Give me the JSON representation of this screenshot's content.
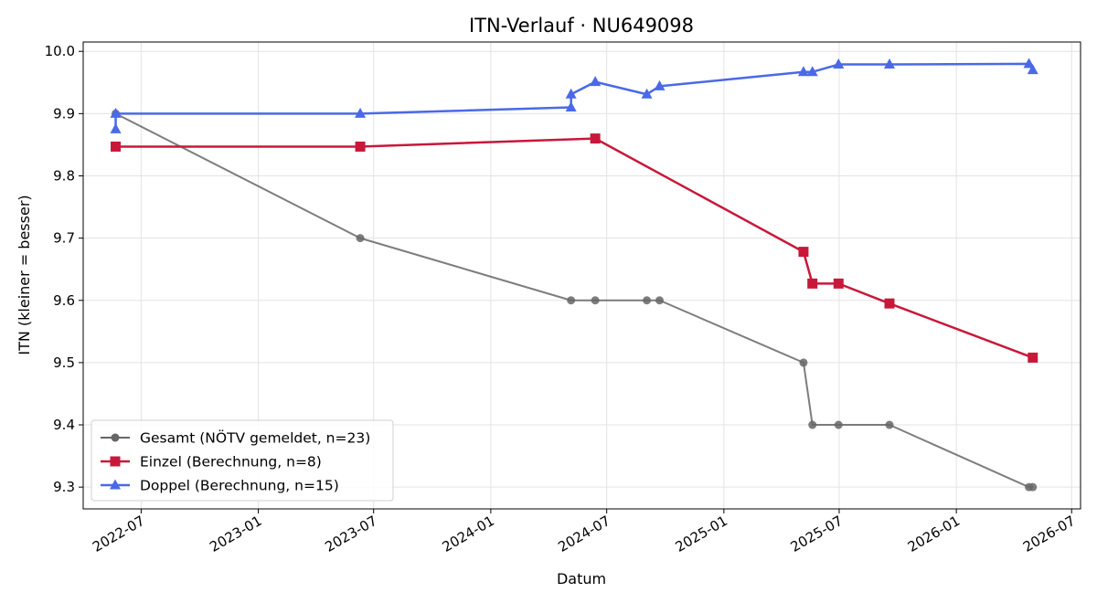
{
  "chart_data": {
    "type": "line",
    "title": "ITN-Verlauf · NU649098",
    "xlabel": "Datum",
    "ylabel": "ITN  (kleiner = besser)",
    "xlim": [
      "2022-04-01",
      "2026-07-15"
    ],
    "ylim": [
      9.265,
      10.015
    ],
    "x_ticks": [
      "2022-07",
      "2023-01",
      "2023-07",
      "2024-01",
      "2024-07",
      "2025-01",
      "2025-07",
      "2026-01",
      "2026-07"
    ],
    "y_ticks": [
      9.3,
      9.4,
      9.5,
      9.6,
      9.7,
      9.8,
      9.9,
      10.0
    ],
    "y_tick_labels": [
      "9.3",
      "9.4",
      "9.5",
      "9.6",
      "9.7",
      "9.8",
      "9.9",
      "10.0"
    ],
    "grid": true,
    "legend_position": "lower-left",
    "series": [
      {
        "name": "Gesamt (NÖTV gemeldet, n=23)",
        "color": "#666666",
        "marker": "circle",
        "points": [
          {
            "x": "2022-05-22",
            "y": 9.9
          },
          {
            "x": "2023-06-10",
            "y": 9.7
          },
          {
            "x": "2024-05-06",
            "y": 9.6
          },
          {
            "x": "2024-06-13",
            "y": 9.6
          },
          {
            "x": "2024-09-02",
            "y": 9.6
          },
          {
            "x": "2024-09-22",
            "y": 9.6
          },
          {
            "x": "2025-05-06",
            "y": 9.5
          },
          {
            "x": "2025-05-20",
            "y": 9.4
          },
          {
            "x": "2025-06-30",
            "y": 9.4
          },
          {
            "x": "2025-09-18",
            "y": 9.4
          },
          {
            "x": "2026-04-25",
            "y": 9.3
          },
          {
            "x": "2026-05-01",
            "y": 9.3
          }
        ]
      },
      {
        "name": "Einzel (Berechnung, n=8)",
        "color": "#c8183a",
        "marker": "square",
        "points": [
          {
            "x": "2022-05-22",
            "y": 9.847
          },
          {
            "x": "2023-06-10",
            "y": 9.847
          },
          {
            "x": "2024-06-13",
            "y": 9.86
          },
          {
            "x": "2025-05-06",
            "y": 9.678
          },
          {
            "x": "2025-05-20",
            "y": 9.627
          },
          {
            "x": "2025-06-30",
            "y": 9.627
          },
          {
            "x": "2025-09-18",
            "y": 9.595
          },
          {
            "x": "2026-05-01",
            "y": 9.508
          }
        ]
      },
      {
        "name": "Doppel (Berechnung, n=15)",
        "color": "#4a69e8",
        "marker": "triangle",
        "points": [
          {
            "x": "2022-05-22",
            "y": 9.875
          },
          {
            "x": "2022-05-22",
            "y": 9.9
          },
          {
            "x": "2023-06-10",
            "y": 9.9
          },
          {
            "x": "2024-05-06",
            "y": 9.91
          },
          {
            "x": "2024-05-06",
            "y": 9.931
          },
          {
            "x": "2024-06-13",
            "y": 9.951
          },
          {
            "x": "2024-09-02",
            "y": 9.931
          },
          {
            "x": "2024-09-22",
            "y": 9.944
          },
          {
            "x": "2025-05-06",
            "y": 9.967
          },
          {
            "x": "2025-05-20",
            "y": 9.967
          },
          {
            "x": "2025-06-30",
            "y": 9.979
          },
          {
            "x": "2025-09-18",
            "y": 9.979
          },
          {
            "x": "2026-04-25",
            "y": 9.98
          },
          {
            "x": "2026-05-01",
            "y": 9.97
          }
        ]
      }
    ]
  }
}
